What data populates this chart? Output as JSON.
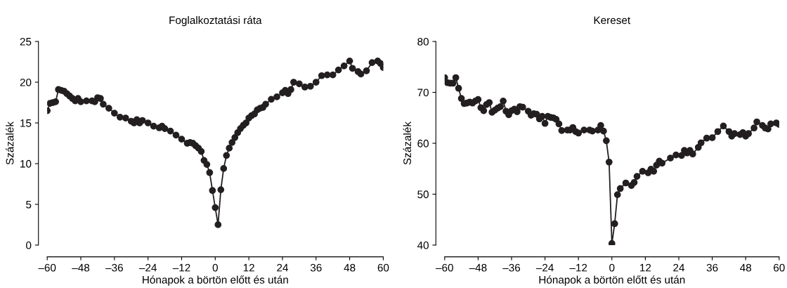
{
  "chart_data": [
    {
      "type": "line",
      "title": "Foglalkoztatási ráta",
      "xlabel": "Hónapok a börtön előtt és után",
      "ylabel": "Százalék",
      "marker": "circle",
      "line_style": "solid",
      "grid": false,
      "legend": false,
      "xlim": [
        -60,
        60
      ],
      "ylim": [
        0,
        25
      ],
      "xticks": [
        {
          "value": -60,
          "label": "–60"
        },
        {
          "value": -48,
          "label": "–48"
        },
        {
          "value": -36,
          "label": "–36"
        },
        {
          "value": -24,
          "label": "–24"
        },
        {
          "value": -12,
          "label": "–12"
        },
        0,
        12,
        24,
        36,
        48,
        60
      ],
      "yticks": [
        0,
        5,
        10,
        15,
        20,
        25
      ],
      "series": [
        {
          "color": "#231f20",
          "x": [
            -60,
            -59,
            -58,
            -57,
            -56,
            -55,
            -54,
            -53,
            -52,
            -51,
            -50,
            -49,
            -48,
            -46,
            -44,
            -43,
            -42,
            -41,
            -40,
            -38,
            -36,
            -34,
            -32,
            -30,
            -29,
            -28,
            -27,
            -26,
            -24,
            -22,
            -20,
            -19,
            -18,
            -16,
            -14,
            -12,
            -10,
            -9,
            -8,
            -7,
            -6,
            -5,
            -4,
            -3,
            -2,
            -1,
            0,
            1,
            2,
            3,
            4,
            5,
            6,
            7,
            8,
            9,
            10,
            11,
            12,
            13,
            14,
            15,
            16,
            17,
            18,
            20,
            22,
            24,
            25,
            26,
            27,
            28,
            30,
            32,
            34,
            36,
            38,
            40,
            42,
            44,
            46,
            48,
            49,
            51,
            52,
            54,
            56,
            58,
            59,
            60
          ],
          "values": [
            16.5,
            17.4,
            17.5,
            17.6,
            19.1,
            19.0,
            18.9,
            18.6,
            18.3,
            18.0,
            17.7,
            18.0,
            17.6,
            17.7,
            17.7,
            17.6,
            18.1,
            18.0,
            17.3,
            16.8,
            16.2,
            15.7,
            15.6,
            15.2,
            15.0,
            15.4,
            15.0,
            15.3,
            15.0,
            14.6,
            14.4,
            14.6,
            14.3,
            14.0,
            13.5,
            13.0,
            12.5,
            12.6,
            12.5,
            12.2,
            11.9,
            11.5,
            10.4,
            9.9,
            8.9,
            6.7,
            4.6,
            2.5,
            6.8,
            9.4,
            11.0,
            11.9,
            12.6,
            13.2,
            13.8,
            14.3,
            14.7,
            15.0,
            15.6,
            15.9,
            16.1,
            16.6,
            16.8,
            16.9,
            17.3,
            17.9,
            18.2,
            18.7,
            19.0,
            18.6,
            19.1,
            20.0,
            19.8,
            19.4,
            19.5,
            20.0,
            20.8,
            20.9,
            20.9,
            21.5,
            22.0,
            22.6,
            21.7,
            21.3,
            21.0,
            21.4,
            22.4,
            22.6,
            22.3,
            21.8
          ]
        }
      ]
    },
    {
      "type": "line",
      "title": "Kereset",
      "xlabel": "Hónapok a börtön előtt és után",
      "ylabel": "Százalék",
      "marker": "circle",
      "line_style": "solid",
      "grid": false,
      "legend": false,
      "xlim": [
        -60,
        60
      ],
      "ylim": [
        40,
        80
      ],
      "xticks": [
        {
          "value": -60,
          "label": "–60"
        },
        {
          "value": -48,
          "label": "–48"
        },
        {
          "value": -36,
          "label": "–36"
        },
        {
          "value": -24,
          "label": "–24"
        },
        {
          "value": -12,
          "label": "–12"
        },
        0,
        12,
        24,
        36,
        48,
        60
      ],
      "yticks": [
        40,
        50,
        60,
        70,
        80
      ],
      "series": [
        {
          "color": "#231f20",
          "x": [
            -60,
            -59,
            -58,
            -57,
            -56,
            -55,
            -54,
            -53,
            -52,
            -51,
            -50,
            -49,
            -48,
            -47,
            -46,
            -45,
            -44,
            -43,
            -42,
            -41,
            -40,
            -39,
            -38,
            -37,
            -36,
            -35,
            -34,
            -33,
            -32,
            -30,
            -29,
            -28,
            -27,
            -26,
            -25,
            -24,
            -23,
            -22,
            -21,
            -20,
            -19,
            -18,
            -16,
            -15,
            -14,
            -13,
            -12,
            -10,
            -8,
            -7,
            -5,
            -4,
            -3,
            -2,
            -1,
            0,
            1,
            2,
            3,
            5,
            7,
            8,
            9,
            11,
            13,
            14,
            15,
            16,
            17,
            18,
            21,
            23,
            25,
            26,
            27,
            28,
            29,
            31,
            32,
            34,
            36,
            38,
            40,
            42,
            43,
            44,
            46,
            47,
            48,
            49,
            51,
            52,
            54,
            55,
            56,
            57,
            59,
            60
          ],
          "values": [
            72.9,
            71.9,
            71.8,
            71.8,
            72.9,
            70.8,
            68.8,
            67.8,
            67.9,
            68.1,
            67.9,
            68.3,
            68.6,
            67.0,
            66.4,
            67.6,
            68.0,
            66.1,
            66.5,
            66.9,
            67.2,
            68.3,
            66.3,
            65.6,
            66.4,
            66.7,
            66.2,
            67.2,
            67.1,
            66.3,
            65.5,
            65.8,
            65.7,
            64.8,
            65.3,
            63.9,
            65.3,
            65.1,
            65.0,
            64.7,
            63.8,
            62.5,
            62.6,
            62.6,
            63.1,
            62.3,
            62.0,
            62.6,
            62.6,
            62.4,
            62.6,
            63.5,
            62.4,
            60.5,
            56.3,
            40.3,
            44.2,
            49.9,
            51.1,
            52.2,
            51.7,
            52.3,
            53.5,
            54.5,
            54.2,
            54.9,
            54.5,
            55.7,
            56.5,
            56.1,
            57.1,
            57.7,
            57.6,
            58.6,
            58.1,
            58.6,
            57.9,
            59.2,
            60.1,
            61.0,
            61.1,
            62.3,
            63.4,
            62.3,
            61.4,
            61.9,
            61.7,
            62.1,
            61.4,
            61.9,
            63.0,
            64.2,
            63.5,
            63.0,
            62.8,
            63.8,
            64.0,
            63.7
          ]
        }
      ]
    }
  ]
}
